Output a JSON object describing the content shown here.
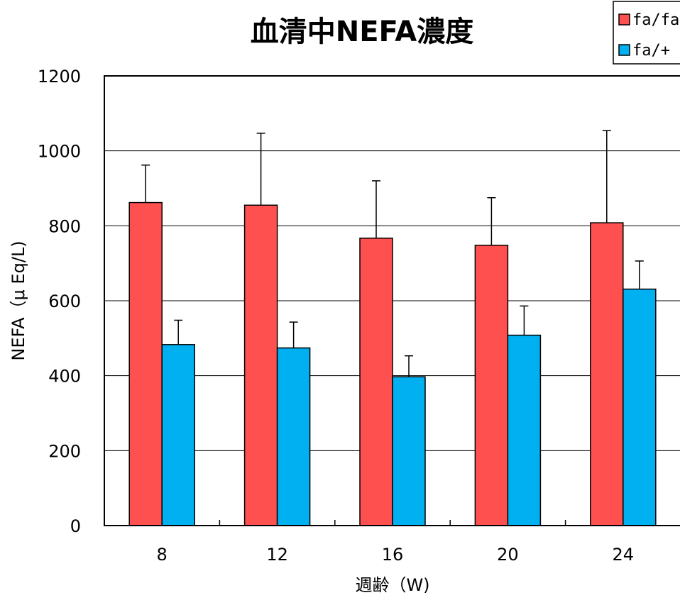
{
  "chart_data": {
    "type": "bar",
    "title": "血清中NEFA濃度",
    "xlabel": "週齢（W)",
    "ylabel": "NEFA（μ Eq/L)",
    "categories": [
      "8",
      "12",
      "16",
      "20",
      "24"
    ],
    "ylim": [
      0,
      1200
    ],
    "yticks": [
      0,
      200,
      400,
      600,
      800,
      1000,
      1200
    ],
    "grid": true,
    "legend_position": "top-right",
    "series": [
      {
        "name": "fa/fa",
        "color": "#FF5050",
        "values": [
          862,
          855,
          767,
          748,
          808
        ],
        "errors": [
          100,
          192,
          153,
          127,
          246
        ]
      },
      {
        "name": "fa/+",
        "color": "#00B0F0",
        "values": [
          483,
          474,
          397,
          508,
          631
        ],
        "errors": [
          65,
          69,
          56,
          78,
          75
        ]
      }
    ]
  }
}
